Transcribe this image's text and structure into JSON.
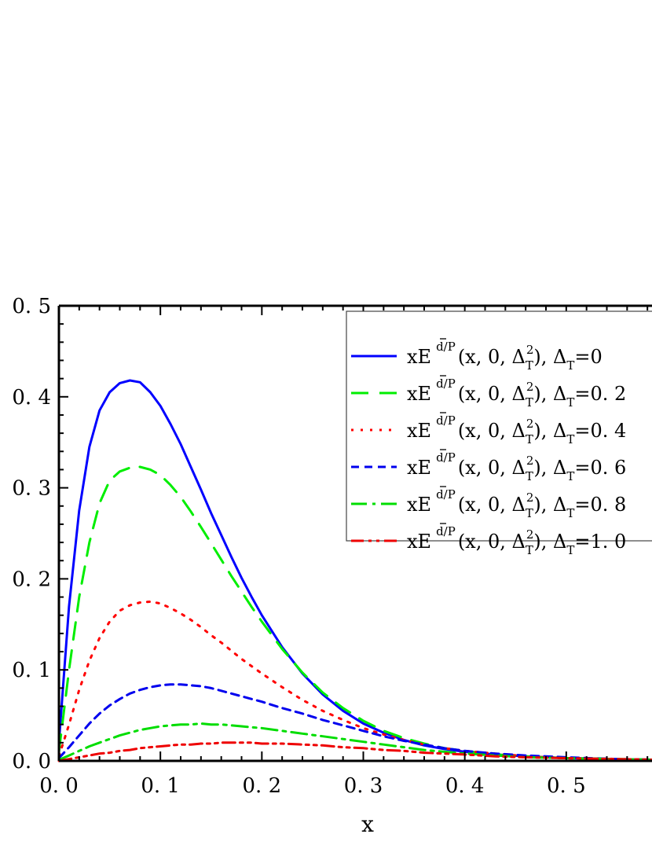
{
  "chart_data": {
    "type": "line",
    "title": "",
    "xlabel": "x",
    "ylabel": "",
    "xlim": [
      0.0,
      0.6
    ],
    "ylim": [
      0.0,
      0.5
    ],
    "x_ticks": [
      "0. 0",
      "0. 1",
      "0. 2",
      "0. 3",
      "0. 4",
      "0. 5"
    ],
    "y_ticks": [
      "0. 0",
      "0. 1",
      "0. 2",
      "0. 3",
      "0. 4",
      "0. 5"
    ],
    "x_tick_values": [
      0.0,
      0.1,
      0.2,
      0.3,
      0.4,
      0.5
    ],
    "y_tick_values": [
      0.0,
      0.1,
      0.2,
      0.3,
      0.4,
      0.5
    ],
    "grid": false,
    "legend_position": "top-right",
    "x": [
      0.0,
      0.01,
      0.02,
      0.03,
      0.04,
      0.05,
      0.06,
      0.07,
      0.08,
      0.09,
      0.1,
      0.11,
      0.12,
      0.13,
      0.14,
      0.15,
      0.16,
      0.17,
      0.18,
      0.19,
      0.2,
      0.22,
      0.24,
      0.26,
      0.28,
      0.3,
      0.32,
      0.34,
      0.36,
      0.38,
      0.4,
      0.43,
      0.46,
      0.5,
      0.55,
      0.6
    ],
    "series": [
      {
        "name": "xE d/P(x, 0, ΔT2), ΔT=0",
        "label": {
          "pre": "xE",
          "sup": "d/P",
          "args": "(x, 0, Δ",
          "sub1": "T",
          "sup2": "2",
          "mid": "), Δ",
          "sub2": "T",
          "post": "=0"
        },
        "color": "#0000ff",
        "dash": "solid",
        "values": [
          0.02,
          0.17,
          0.275,
          0.345,
          0.385,
          0.405,
          0.415,
          0.418,
          0.416,
          0.405,
          0.39,
          0.37,
          0.348,
          0.323,
          0.298,
          0.272,
          0.248,
          0.224,
          0.201,
          0.18,
          0.16,
          0.125,
          0.096,
          0.073,
          0.055,
          0.041,
          0.031,
          0.023,
          0.017,
          0.013,
          0.01,
          0.007,
          0.005,
          0.003,
          0.002,
          0.001
        ]
      },
      {
        "name": "xE d/P(x, 0, ΔT2), ΔT=0. 2",
        "label": {
          "pre": "xE",
          "sup": "d/P",
          "args": "(x, 0, Δ",
          "sub1": "T",
          "sup2": "2",
          "mid": "), Δ",
          "sub2": "T",
          "post": "=0. 2"
        },
        "color": "#00ee00",
        "dash": "longdash",
        "values": [
          0.01,
          0.1,
          0.18,
          0.24,
          0.283,
          0.308,
          0.318,
          0.322,
          0.323,
          0.32,
          0.314,
          0.303,
          0.29,
          0.274,
          0.257,
          0.239,
          0.221,
          0.203,
          0.186,
          0.169,
          0.153,
          0.123,
          0.097,
          0.075,
          0.058,
          0.044,
          0.033,
          0.025,
          0.019,
          0.014,
          0.011,
          0.007,
          0.005,
          0.003,
          0.002,
          0.001
        ]
      },
      {
        "name": "xE d/P(x, 0, ΔT2), ΔT=0. 4",
        "label": {
          "pre": "xE",
          "sup": "d/P",
          "args": "(x, 0, Δ",
          "sub1": "T",
          "sup2": "2",
          "mid": "), Δ",
          "sub2": "T",
          "post": "=0. 4"
        },
        "color": "#ff0000",
        "dash": "dotted",
        "values": [
          0.005,
          0.04,
          0.078,
          0.11,
          0.135,
          0.153,
          0.165,
          0.171,
          0.174,
          0.175,
          0.173,
          0.168,
          0.162,
          0.155,
          0.147,
          0.138,
          0.13,
          0.121,
          0.112,
          0.104,
          0.096,
          0.081,
          0.067,
          0.055,
          0.045,
          0.036,
          0.029,
          0.023,
          0.018,
          0.014,
          0.011,
          0.008,
          0.005,
          0.003,
          0.002,
          0.001
        ]
      },
      {
        "name": "xE d/P(x, 0, ΔT2), ΔT=0. 6",
        "label": {
          "pre": "xE",
          "sup": "d/P",
          "args": "(x, 0, Δ",
          "sub1": "T",
          "sup2": "2",
          "mid": "), Δ",
          "sub2": "T",
          "post": "=0. 6"
        },
        "color": "#0000ee",
        "dash": "shortdash",
        "values": [
          0.003,
          0.015,
          0.028,
          0.041,
          0.052,
          0.061,
          0.068,
          0.074,
          0.078,
          0.081,
          0.083,
          0.084,
          0.084,
          0.083,
          0.082,
          0.08,
          0.077,
          0.074,
          0.071,
          0.068,
          0.065,
          0.058,
          0.052,
          0.045,
          0.039,
          0.033,
          0.027,
          0.022,
          0.018,
          0.014,
          0.011,
          0.008,
          0.006,
          0.004,
          0.002,
          0.001
        ]
      },
      {
        "name": "xE d/P(x, 0, ΔT2), ΔT=0. 8",
        "label": {
          "pre": "xE",
          "sup": "d/P",
          "args": "(x, 0, Δ",
          "sub1": "T",
          "sup2": "2",
          "mid": "), Δ",
          "sub2": "T",
          "post": "=0. 8"
        },
        "color": "#00dd00",
        "dash": "dashdot",
        "values": [
          0.001,
          0.006,
          0.011,
          0.016,
          0.02,
          0.024,
          0.028,
          0.031,
          0.034,
          0.036,
          0.038,
          0.039,
          0.04,
          0.04,
          0.041,
          0.04,
          0.04,
          0.039,
          0.038,
          0.037,
          0.036,
          0.033,
          0.03,
          0.027,
          0.024,
          0.021,
          0.018,
          0.015,
          0.012,
          0.01,
          0.008,
          0.006,
          0.004,
          0.003,
          0.002,
          0.001
        ]
      },
      {
        "name": "xE d/P(x, 0, ΔT2), ΔT=1. 0",
        "label": {
          "pre": "xE",
          "sup": "d/P",
          "args": "(x, 0, Δ",
          "sub1": "T",
          "sup2": "2",
          "mid": "), Δ",
          "sub2": "T",
          "post": "=1. 0"
        },
        "color": "#ee0000",
        "dash": "dashdotdot",
        "values": [
          0.0,
          0.002,
          0.004,
          0.006,
          0.008,
          0.009,
          0.011,
          0.012,
          0.014,
          0.015,
          0.016,
          0.017,
          0.018,
          0.018,
          0.019,
          0.019,
          0.02,
          0.02,
          0.02,
          0.02,
          0.019,
          0.019,
          0.018,
          0.017,
          0.015,
          0.014,
          0.012,
          0.011,
          0.009,
          0.008,
          0.007,
          0.005,
          0.004,
          0.003,
          0.002,
          0.001
        ]
      }
    ]
  }
}
